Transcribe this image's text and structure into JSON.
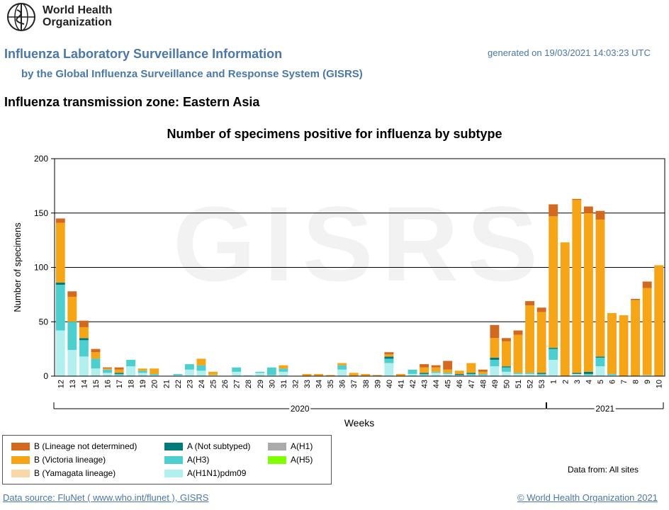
{
  "header": {
    "logo_text_line1": "World Health",
    "logo_text_line2": "Organization",
    "title": "Influenza Laboratory Surveillance Information",
    "subtitle": "by the Global Influenza Surveillance and Response System (GISRS)",
    "generated": "generated on 19/03/2021 14:03:23 UTC",
    "zone": "Influenza transmission zone: Eastern Asia"
  },
  "watermark": "GISRS",
  "footer": {
    "data_from": "Data from: All sites",
    "source": "Data source: FluNet ( www.who.int/flunet ), GISRS",
    "copyright": "© World Health Organization 2021"
  },
  "legend": [
    {
      "key": "B_nd",
      "label": "B (Lineage not determined)",
      "color": "#d2691e"
    },
    {
      "key": "A_ns",
      "label": "A (Not subtyped)",
      "color": "#007b7b"
    },
    {
      "key": "A_H1",
      "label": "A(H1)",
      "color": "#aaaaaa"
    },
    {
      "key": "B_vic",
      "label": "B (Victoria lineage)",
      "color": "#f5a516"
    },
    {
      "key": "A_H3",
      "label": "A(H3)",
      "color": "#4ecfcf"
    },
    {
      "key": "A_H5",
      "label": "A(H5)",
      "color": "#7fff00"
    },
    {
      "key": "B_yam",
      "label": "B (Yamagata lineage)",
      "color": "#fad7a8"
    },
    {
      "key": "A_H1N1",
      "label": "A(H1N1)pdm09",
      "color": "#b2f0f0"
    }
  ],
  "chart_data": {
    "type": "bar",
    "stacked": true,
    "title": "Number of specimens positive for influenza by subtype",
    "xlabel": "Weeks",
    "ylabel": "Number of specimens",
    "ylim": [
      0,
      200
    ],
    "yticks": [
      0,
      50,
      100,
      150,
      200
    ],
    "grid": true,
    "year_groups": [
      {
        "label": "2020",
        "first": "12",
        "last": "53"
      },
      {
        "label": "2021",
        "first": "1",
        "last": "10"
      }
    ],
    "categories": [
      "12",
      "13",
      "14",
      "15",
      "16",
      "17",
      "18",
      "19",
      "20",
      "21",
      "22",
      "23",
      "24",
      "25",
      "26",
      "27",
      "28",
      "29",
      "30",
      "31",
      "32",
      "33",
      "34",
      "35",
      "36",
      "37",
      "38",
      "39",
      "40",
      "41",
      "42",
      "43",
      "44",
      "45",
      "46",
      "47",
      "48",
      "49",
      "50",
      "51",
      "52",
      "53",
      "1",
      "2",
      "3",
      "4",
      "5",
      "6",
      "7",
      "8",
      "9",
      "10"
    ],
    "series": [
      {
        "name": "A(H1N1)pdm09",
        "color": "#b2f0f0",
        "values": [
          42,
          24,
          18,
          7,
          3,
          1,
          9,
          3,
          1,
          0,
          1,
          6,
          5,
          1,
          0,
          4,
          1,
          3,
          1,
          4,
          0,
          0,
          0,
          0,
          6,
          0,
          0,
          0,
          12,
          0,
          2,
          1,
          3,
          2,
          1,
          1,
          1,
          9,
          4,
          2,
          2,
          1,
          15,
          0,
          2,
          1,
          9,
          1,
          0,
          0,
          1,
          0
        ]
      },
      {
        "name": "A(H3)",
        "color": "#4ecfcf",
        "values": [
          42,
          26,
          15,
          9,
          3,
          1,
          6,
          2,
          1,
          0,
          1,
          5,
          5,
          0,
          0,
          4,
          0,
          1,
          7,
          3,
          0,
          0,
          0,
          0,
          4,
          0,
          0,
          0,
          4,
          0,
          4,
          1,
          1,
          1,
          0,
          1,
          1,
          6,
          4,
          1,
          1,
          1,
          10,
          0,
          0,
          1,
          8,
          1,
          0,
          0,
          0,
          0
        ]
      },
      {
        "name": "A (Not subtyped)",
        "color": "#007b7b",
        "values": [
          2,
          0,
          2,
          0,
          0,
          1,
          0,
          0,
          0,
          0,
          0,
          0,
          0,
          0,
          0,
          0,
          0,
          0,
          0,
          0,
          0,
          0,
          0,
          0,
          0,
          0,
          0,
          0,
          2,
          0,
          0,
          1,
          0,
          0,
          1,
          1,
          0,
          2,
          1,
          0,
          0,
          1,
          1,
          0,
          1,
          2,
          1,
          0,
          0,
          0,
          0,
          0
        ]
      },
      {
        "name": "B (Victoria lineage)",
        "color": "#f5a516",
        "values": [
          55,
          23,
          10,
          6,
          1,
          3,
          0,
          2,
          5,
          0,
          0,
          0,
          6,
          3,
          0,
          0,
          0,
          0,
          0,
          3,
          0,
          2,
          2,
          1,
          2,
          3,
          2,
          1,
          2,
          2,
          0,
          5,
          4,
          3,
          3,
          9,
          2,
          18,
          23,
          35,
          62,
          56,
          121,
          123,
          159,
          146,
          126,
          56,
          56,
          70,
          80,
          102
        ]
      },
      {
        "name": "B (Lineage not determined)",
        "color": "#d2691e",
        "values": [
          4,
          5,
          6,
          3,
          1,
          2,
          0,
          0,
          0,
          0,
          0,
          0,
          0,
          0,
          0,
          0,
          0,
          0,
          0,
          0,
          0,
          0,
          0,
          0,
          0,
          0,
          0,
          0,
          2,
          0,
          0,
          3,
          2,
          8,
          0,
          0,
          2,
          12,
          3,
          4,
          4,
          4,
          11,
          0,
          1,
          6,
          8,
          0,
          0,
          1,
          6,
          0
        ]
      }
    ]
  }
}
